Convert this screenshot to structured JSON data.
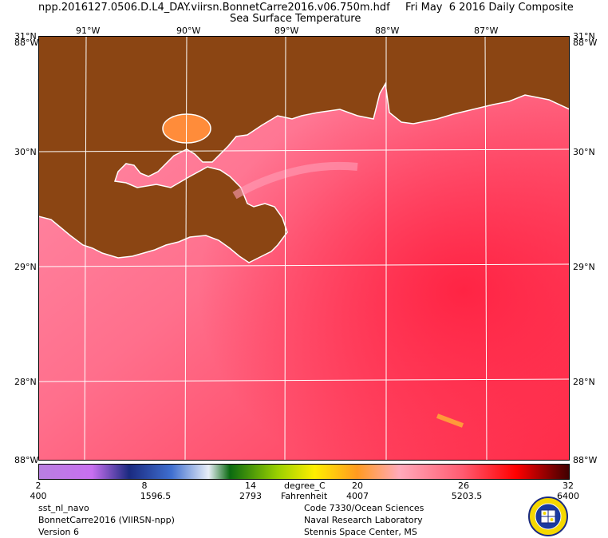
{
  "header": {
    "filename": "npp.2016127.0506.D.L4_DAY.viirsn.BonnetCarre2016.v06.750m.hdf",
    "date": "Fri May  6 2016 Daily Composite",
    "product": "Sea Surface Temperature"
  },
  "map": {
    "top_lon_labels": [
      "91°W",
      "90°W",
      "89°W",
      "88°W",
      "87°W"
    ],
    "lat_labels": [
      "30°N",
      "29°N",
      "28°N"
    ],
    "corner_top_left": "31°N",
    "corner_top_left_lon": "88°W",
    "corner_top_right": "31°N",
    "corner_top_right_lon": "88°W",
    "corner_bottom_left": "88°W",
    "corner_bottom_right": "88°W",
    "colors": {
      "land": "#8B4513",
      "ocean_warm": "#ff3b59",
      "ocean_cool": "#ff8aa8",
      "coast": "#ffffff",
      "grid": "#ffffff"
    }
  },
  "colorbar": {
    "unit_c": "degree_C",
    "unit_f": "Fahrenheit",
    "celsius_ticks": [
      "2",
      "8",
      "14",
      "20",
      "26",
      "32"
    ],
    "other_ticks": [
      "400",
      "1596.5",
      "2793",
      "4007",
      "5203.5",
      "6400"
    ]
  },
  "footer": {
    "left": [
      "sst_nl_navo",
      "BonnetCarre2016 (VIIRSN-npp)",
      "Version 6"
    ],
    "center": [
      "Code 7330/Ocean Sciences",
      "Naval Research Laboratory",
      "Stennis Space Center, MS"
    ]
  }
}
